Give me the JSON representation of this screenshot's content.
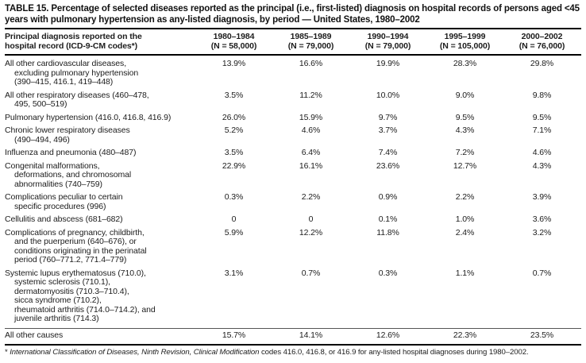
{
  "title": "TABLE 15. Percentage of selected diseases reported as the principal (i.e., first-listed) diagnosis on hospital records of persons aged <45 years with pulmonary hypertension as any-listed diagnosis, by period — United States, 1980–2002",
  "header": {
    "diagnosis_col": {
      "line1": "Principal diagnosis reported on the",
      "line2": "hospital record (ICD-9-CM codes*)"
    },
    "periods": [
      {
        "range": "1980–1984",
        "n": "(N = 58,000)"
      },
      {
        "range": "1985–1989",
        "n": "(N = 79,000)"
      },
      {
        "range": "1990–1994",
        "n": "(N = 79,000)"
      },
      {
        "range": "1995–1999",
        "n": "(N = 105,000)"
      },
      {
        "range": "2000–2002",
        "n": "(N = 76,000)"
      }
    ]
  },
  "rows": [
    {
      "label_lines": [
        "All other cardiovascular diseases,",
        "excluding pulmonary hypertension",
        "(390–415, 416.1, 419–448)"
      ],
      "values": [
        "13.9%",
        "16.6%",
        "19.9%",
        "28.3%",
        "29.8%"
      ]
    },
    {
      "label_lines": [
        "All other respiratory diseases (460–478,",
        "495, 500–519)"
      ],
      "values": [
        "3.5%",
        "11.2%",
        "10.0%",
        "9.0%",
        "9.8%"
      ]
    },
    {
      "label_lines": [
        "Pulmonary hypertension (416.0, 416.8, 416.9)"
      ],
      "values": [
        "26.0%",
        "15.9%",
        "9.7%",
        "9.5%",
        "9.5%"
      ]
    },
    {
      "label_lines": [
        "Chronic lower respiratory diseases",
        "(490–494, 496)"
      ],
      "values": [
        "5.2%",
        "4.6%",
        "3.7%",
        "4.3%",
        "7.1%"
      ]
    },
    {
      "label_lines": [
        "Influenza and pneumonia (480–487)"
      ],
      "values": [
        "3.5%",
        "6.4%",
        "7.4%",
        "7.2%",
        "4.6%"
      ]
    },
    {
      "label_lines": [
        "Congenital malformations,",
        "deformations, and chromosomal",
        "abnormalities (740–759)"
      ],
      "values": [
        "22.9%",
        "16.1%",
        "23.6%",
        "12.7%",
        "4.3%"
      ]
    },
    {
      "label_lines": [
        "Complications peculiar to certain",
        "specific procedures (996)"
      ],
      "values": [
        "0.3%",
        "2.2%",
        "0.9%",
        "2.2%",
        "3.9%"
      ]
    },
    {
      "label_lines": [
        "Cellulitis and abscess (681–682)"
      ],
      "values": [
        "0",
        "0",
        "0.1%",
        "1.0%",
        "3.6%"
      ]
    },
    {
      "label_lines": [
        "Complications of pregnancy, childbirth,",
        "and the puerperium (640–676), or",
        "conditions originating in the perinatal",
        "period (760–771.2, 771.4–779)"
      ],
      "values": [
        "5.9%",
        "12.2%",
        "11.8%",
        "2.4%",
        "3.2%"
      ]
    },
    {
      "label_lines": [
        "Systemic lupus erythematosus (710.0),",
        "systemic sclerosis (710.1),",
        "dermatomyositis (710.3–710.4),",
        "sicca syndrome (710.2),",
        "rheumatoid arthritis (714.0–714.2), and",
        "juvenile arthritis (714.3)"
      ],
      "values": [
        "3.1%",
        "0.7%",
        "0.3%",
        "1.1%",
        "0.7%"
      ]
    },
    {
      "label_lines": [
        "All other causes"
      ],
      "values": [
        "15.7%",
        "14.1%",
        "12.6%",
        "22.3%",
        "23.5%"
      ]
    }
  ],
  "footnote": {
    "marker": "*",
    "italic": " International Classification of Diseases, Ninth Revision, Clinical Modification",
    "rest": " codes 416.0, 416.8, or 416.9 for any-listed hospital diagnoses during 1980–2002."
  }
}
